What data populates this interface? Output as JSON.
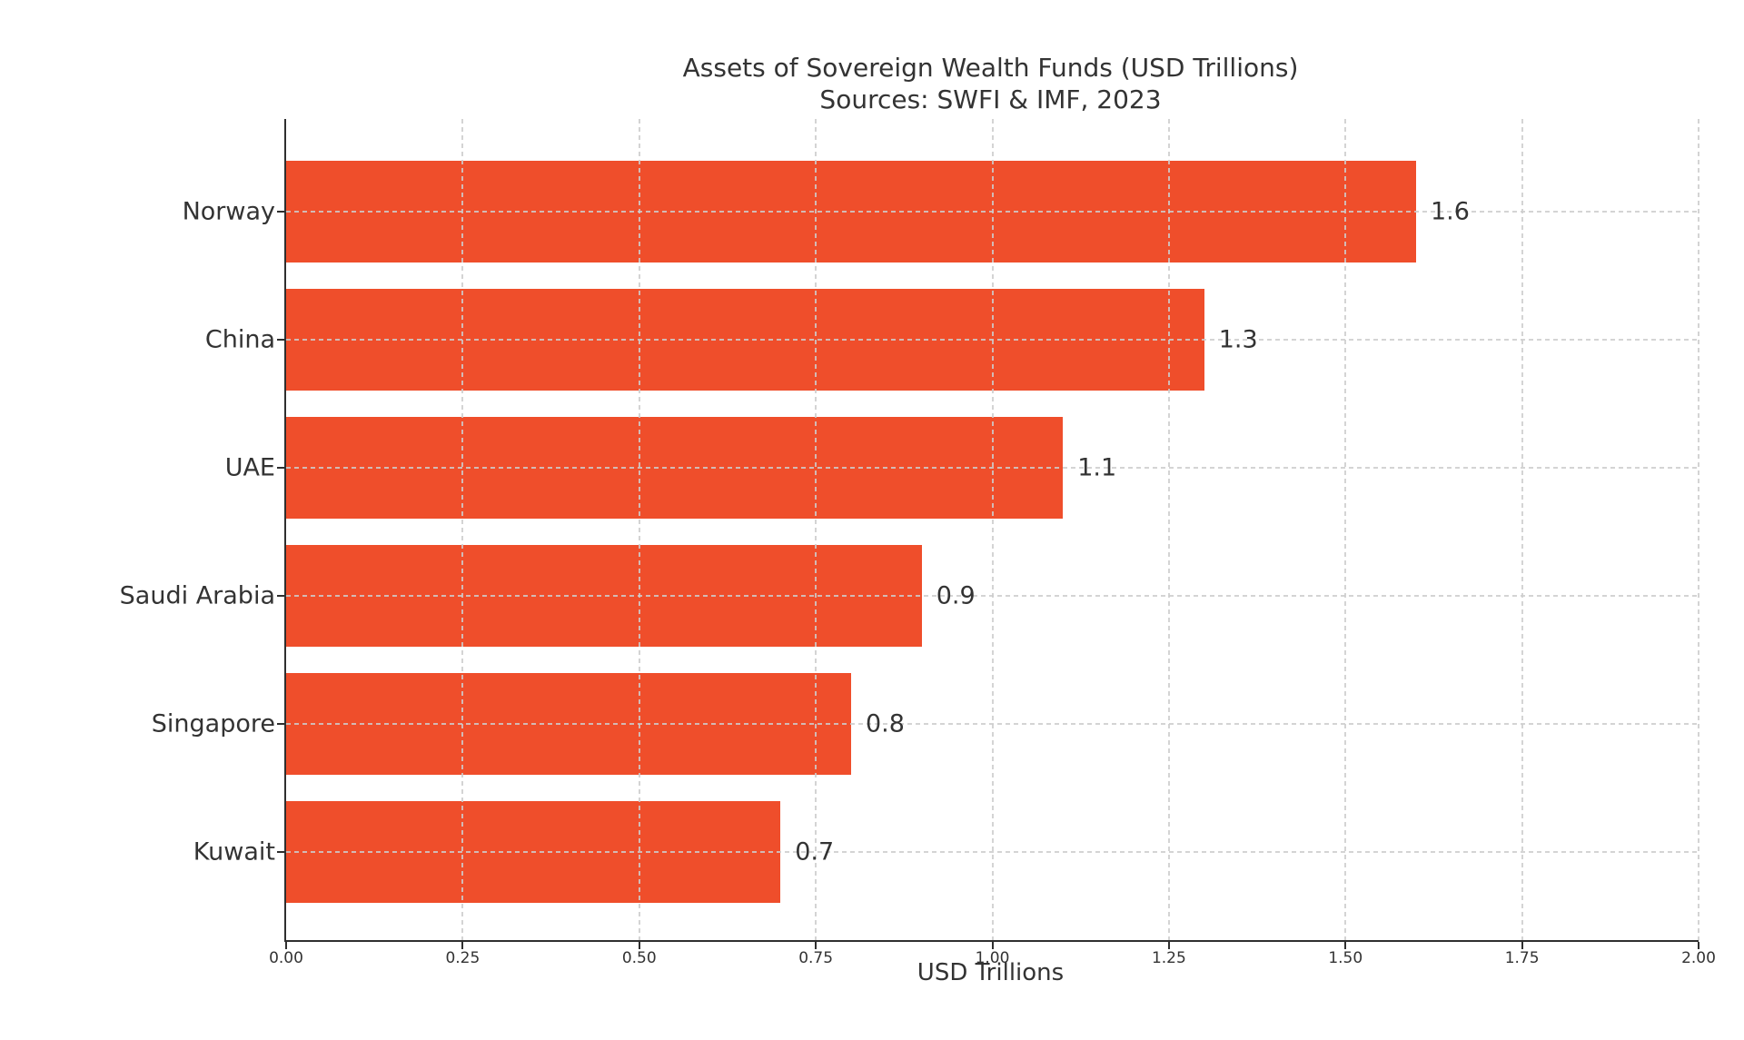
{
  "chart_data": {
    "type": "bar",
    "orientation": "horizontal",
    "title": "Assets of Sovereign Wealth Funds (USD Trillions)",
    "subtitle": "Sources: SWFI & IMF, 2023",
    "categories": [
      "Norway",
      "China",
      "UAE",
      "Saudi Arabia",
      "Singapore",
      "Kuwait"
    ],
    "values": [
      1.6,
      1.3,
      1.1,
      0.9,
      0.8,
      0.7
    ],
    "value_labels": [
      "1.6",
      "1.3",
      "1.1",
      "0.9",
      "0.8",
      "0.7"
    ],
    "xlabel": "USD Trillions",
    "xlim": [
      0,
      2
    ],
    "xtick_values": [
      0,
      0.25,
      0.5,
      0.75,
      1.0,
      1.25,
      1.5,
      1.75,
      2.0
    ],
    "xtick_labels": [
      "0.00",
      "0.25",
      "0.50",
      "0.75",
      "1.00",
      "1.25",
      "1.50",
      "1.75",
      "2.00"
    ],
    "grid": "dashed",
    "legend": "none",
    "bar_color": "#EF4E2B",
    "grid_color": "#cdcdcd",
    "text_color": "#333333",
    "spine_color": "#2f2f2f"
  }
}
